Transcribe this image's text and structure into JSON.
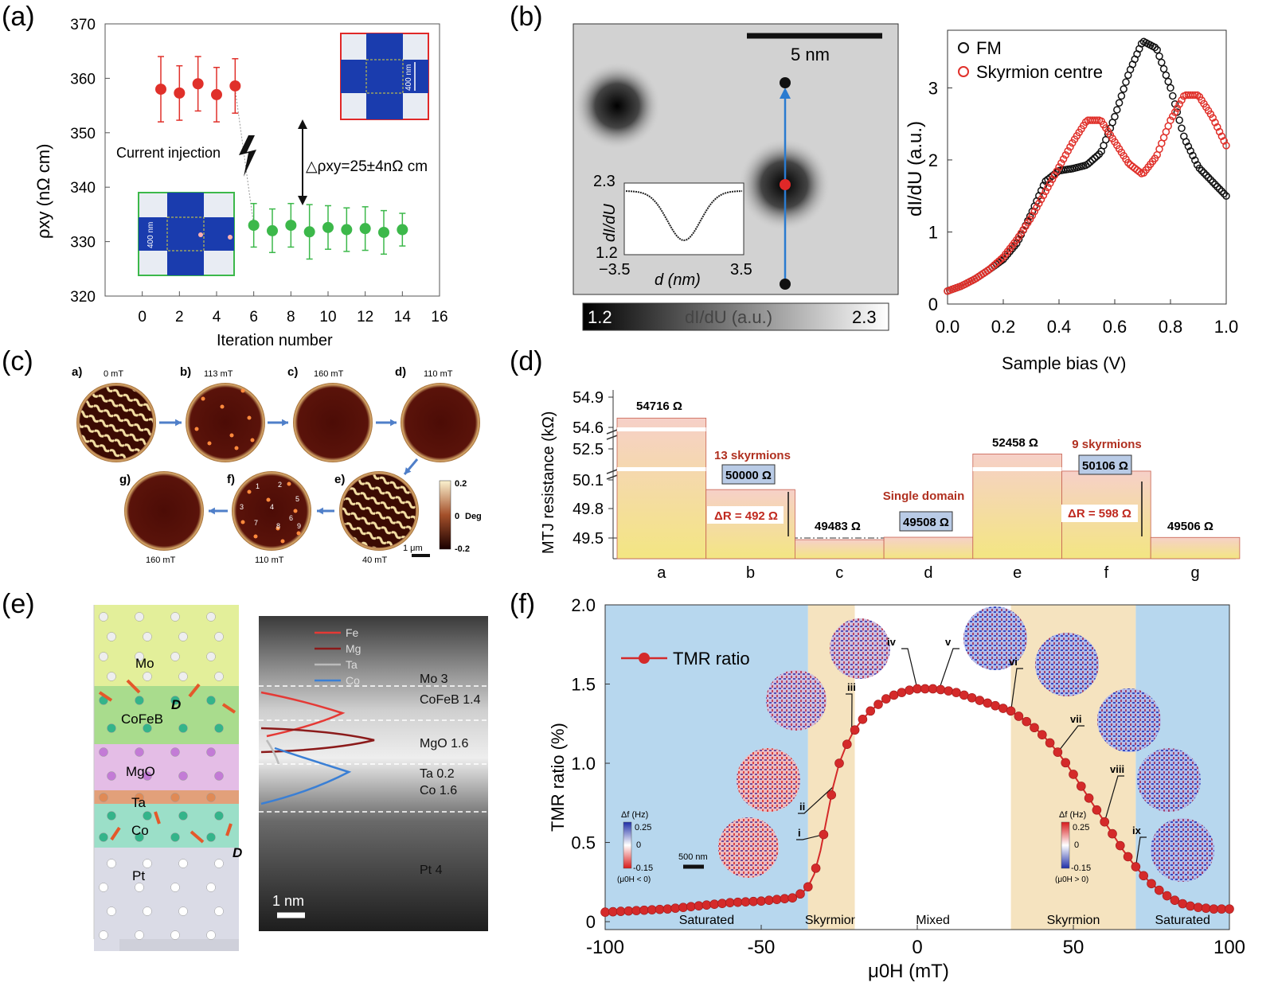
{
  "panel_labels": [
    "(a)",
    "(b)",
    "(c)",
    "(d)",
    "(e)",
    "(f)"
  ],
  "colors": {
    "red": "#e0302a",
    "green": "#3cb84a",
    "black": "#111111",
    "blue_bg": "#b7d7ee",
    "tan_bg": "#f5e3bf",
    "skyrmion_red": "#d42a2a",
    "bar_fill_top": "#f6d3c9",
    "bar_fill_bottom": "#f2e78a",
    "label_box": "#b9cbe6"
  },
  "panel_a": {
    "ylabel": "ρxy (nΩ cm)",
    "xlabel": "Iteration number",
    "annotation": "Current injection",
    "delta_label": "△ρxy=25±4nΩ cm",
    "inset_label": "400 nm"
  },
  "panel_b": {
    "scalebar_label": "5 nm",
    "colorbar_min": "1.2",
    "colorbar_max": "2.3",
    "colorbar_label": "dI/dU (a.u.)",
    "inset": {
      "ylabel": "dI/dU",
      "xlabel": "d (nm)",
      "ymax": "2.3",
      "ymin": "1.2",
      "xmin": "−3.5",
      "xmax": "3.5"
    },
    "legend": [
      "FM",
      "Skyrmion centre"
    ]
  },
  "panel_c": {
    "tiles": [
      {
        "tag": "a)",
        "field": "0 mT",
        "type": "stripe"
      },
      {
        "tag": "b)",
        "field": "113 mT",
        "type": "dots"
      },
      {
        "tag": "c)",
        "field": "160 mT",
        "type": "plain"
      },
      {
        "tag": "d)",
        "field": "110 mT",
        "type": "plain"
      },
      {
        "tag": "e)",
        "field": "40 mT",
        "type": "stripe"
      },
      {
        "tag": "f)",
        "field": "110 mT",
        "type": "numbered"
      },
      {
        "tag": "g)",
        "field": "160 mT",
        "type": "plain"
      }
    ],
    "dot_numbers": [
      "1",
      "2",
      "3",
      "4",
      "5",
      "6",
      "7",
      "8",
      "9"
    ],
    "colorbar": {
      "max": "0.2",
      "mid": "0",
      "unit": "Deg",
      "min": "-0.2"
    },
    "scalebar": "1 μm"
  },
  "panel_d": {
    "ylabel": "MTJ resistance (kΩ)",
    "value_labels": [
      "54716 Ω",
      "50000 Ω",
      "49483 Ω",
      "49508 Ω",
      "52458 Ω",
      "50106 Ω",
      "49506 Ω"
    ],
    "annotations": [
      "13 skyrmions",
      "Single domain",
      "9 skyrmions"
    ],
    "delta_labels": [
      "ΔR = 492 Ω",
      "ΔR = 598 Ω"
    ]
  },
  "panel_e": {
    "layers": [
      "Mo",
      "CoFeB",
      "MgO",
      "Ta",
      "Co",
      "Pt"
    ],
    "vector_label": "D",
    "legend": [
      {
        "name": "Fe",
        "color": "#e53935"
      },
      {
        "name": "Mg",
        "color": "#8b1a1a"
      },
      {
        "name": "Ta",
        "color": "#bbbbbb"
      },
      {
        "name": "Co",
        "color": "#3a7fd5"
      }
    ],
    "layer_thickness_labels": [
      "Mo 3",
      "CoFeB 1.4",
      "MgO 1.6",
      "Ta 0.2",
      "Co 1.6",
      "Pt 4"
    ],
    "scalebar": "1 nm"
  },
  "panel_f": {
    "legend": "TMR ratio",
    "region_labels": [
      "Saturated",
      "Skyrmion",
      "Mixed",
      "Skyrmion",
      "Saturated"
    ],
    "roman": [
      "i",
      "ii",
      "iii",
      "iv",
      "v",
      "vi",
      "vii",
      "viii",
      "ix"
    ],
    "cbar_left": {
      "title": "Δf (Hz)",
      "max": "0.25",
      "mid": "0",
      "min": "-0.15",
      "cond": "(μ0H < 0)"
    },
    "cbar_right": {
      "title": "Δf (Hz)",
      "max": "0.25",
      "mid": "0",
      "min": "-0.15",
      "cond": "(μ0H > 0)"
    },
    "scalebar": "500 nm"
  },
  "chart_data": [
    {
      "type": "scatter",
      "panel": "(a)",
      "xlabel": "Iteration number",
      "ylabel": "ρxy (nΩ cm)",
      "xlim": [
        -2,
        16
      ],
      "ylim": [
        320,
        370
      ],
      "xticks": [
        0,
        2,
        4,
        6,
        8,
        10,
        12,
        14,
        16
      ],
      "yticks": [
        320,
        330,
        340,
        350,
        360,
        370
      ],
      "series": [
        {
          "color": "#e0302a",
          "x": [
            1,
            2,
            3,
            4,
            5
          ],
          "y": [
            358,
            357.3,
            359,
            357,
            358.6
          ],
          "err": [
            6,
            5,
            5,
            5,
            5
          ]
        },
        {
          "color": "#3cb84a",
          "x": [
            6,
            7,
            8,
            9,
            10,
            11,
            12,
            13,
            14
          ],
          "y": [
            333,
            332,
            333,
            331.8,
            332.6,
            332.2,
            332.4,
            331.7,
            332.2
          ],
          "err": [
            4,
            4,
            4,
            5,
            4,
            4,
            4,
            4,
            3
          ]
        }
      ]
    },
    {
      "type": "line",
      "panel": "(b)",
      "xlabel": "Sample bias (V)",
      "ylabel": "dI/dU (a.u.)",
      "xlim": [
        0,
        1
      ],
      "ylim": [
        0,
        3.8
      ],
      "xticks": [
        0.0,
        0.2,
        0.4,
        0.6,
        0.8,
        1.0
      ],
      "yticks": [
        0,
        1,
        2,
        3
      ],
      "series": [
        {
          "name": "FM",
          "color": "#111111",
          "x": [
            0.0,
            0.05,
            0.1,
            0.15,
            0.2,
            0.25,
            0.3,
            0.35,
            0.4,
            0.45,
            0.5,
            0.55,
            0.6,
            0.65,
            0.7,
            0.75,
            0.8,
            0.85,
            0.9,
            0.95,
            1.0
          ],
          "y": [
            0.18,
            0.25,
            0.35,
            0.48,
            0.62,
            0.85,
            1.25,
            1.7,
            1.85,
            1.88,
            1.93,
            2.1,
            2.6,
            3.2,
            3.65,
            3.55,
            3.0,
            2.3,
            1.9,
            1.7,
            1.5
          ]
        },
        {
          "name": "Skyrmion centre",
          "color": "#e0302a",
          "x": [
            0.0,
            0.05,
            0.1,
            0.15,
            0.2,
            0.25,
            0.3,
            0.35,
            0.4,
            0.45,
            0.5,
            0.55,
            0.6,
            0.65,
            0.7,
            0.75,
            0.8,
            0.85,
            0.9,
            0.95,
            1.0
          ],
          "y": [
            0.18,
            0.25,
            0.35,
            0.48,
            0.65,
            0.9,
            1.2,
            1.55,
            1.9,
            2.25,
            2.55,
            2.55,
            2.25,
            1.95,
            1.8,
            2.05,
            2.55,
            2.9,
            2.9,
            2.6,
            2.2
          ]
        }
      ]
    },
    {
      "type": "bar",
      "panel": "(d)",
      "ylabel": "MTJ resistance (kΩ)",
      "categories": [
        "a",
        "b",
        "c",
        "d",
        "e",
        "f",
        "g"
      ],
      "values": [
        54716,
        50000,
        49483,
        49508,
        52458,
        50106,
        49506
      ],
      "yticks": [
        49.5,
        49.8,
        50.1,
        52.5,
        54.6,
        54.9
      ]
    },
    {
      "type": "line",
      "panel": "(f)",
      "xlabel": "μ0H (mT)",
      "ylabel": "TMR ratio (%)",
      "xlim": [
        -100,
        100
      ],
      "ylim": [
        -0.05,
        2.0
      ],
      "xticks": [
        -100,
        -50,
        0,
        50,
        100
      ],
      "yticks": [
        0,
        0.5,
        1.0,
        1.5,
        2.0
      ],
      "regions": [
        {
          "name": "Saturated",
          "from": -100,
          "to": -35
        },
        {
          "name": "Skyrmion",
          "from": -35,
          "to": -20
        },
        {
          "name": "Mixed",
          "from": -20,
          "to": 30
        },
        {
          "name": "Skyrmion",
          "from": 30,
          "to": 70
        },
        {
          "name": "Saturated",
          "from": 70,
          "to": 100
        }
      ],
      "series": [
        {
          "name": "TMR ratio",
          "color": "#d42a2a",
          "x": [
            -100,
            -90,
            -80,
            -70,
            -60,
            -50,
            -45,
            -40,
            -37,
            -35,
            -33,
            -31,
            -29,
            -27,
            -25,
            -23,
            -21,
            -19,
            -17,
            -15,
            -12,
            -9,
            -6,
            -3,
            0,
            3,
            6,
            9,
            12,
            15,
            18,
            21,
            24,
            27,
            30,
            33,
            36,
            39,
            42,
            45,
            48,
            51,
            54,
            57,
            60,
            63,
            66,
            69,
            72,
            75,
            78,
            81,
            84,
            87,
            90,
            95,
            100
          ],
          "y": [
            0.06,
            0.07,
            0.08,
            0.1,
            0.12,
            0.13,
            0.14,
            0.15,
            0.18,
            0.22,
            0.3,
            0.45,
            0.65,
            0.85,
            1.0,
            1.1,
            1.18,
            1.24,
            1.29,
            1.33,
            1.38,
            1.42,
            1.44,
            1.46,
            1.47,
            1.47,
            1.47,
            1.46,
            1.45,
            1.43,
            1.41,
            1.39,
            1.37,
            1.35,
            1.33,
            1.29,
            1.25,
            1.2,
            1.14,
            1.07,
            0.99,
            0.9,
            0.81,
            0.72,
            0.63,
            0.54,
            0.45,
            0.37,
            0.3,
            0.24,
            0.19,
            0.15,
            0.12,
            0.1,
            0.09,
            0.08,
            0.08
          ]
        }
      ]
    }
  ]
}
